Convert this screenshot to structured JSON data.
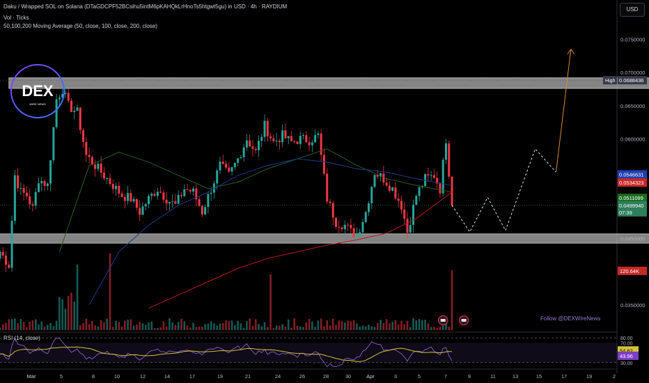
{
  "header": {
    "title": "Daku / Wrapped SOL on Solana (DTaGDCPF52BCsihu5intM6pKAHQkLrHnoTs5htgwt5gu) in USD · 4h · RAYDIUM",
    "volume": "Vol · Ticks",
    "ma": "50,100,200 Moving Average (50, close, 100, close, 200, close)"
  },
  "currency": "USD",
  "logo": {
    "text": "DEX",
    "subtext": "WIRE NEWS"
  },
  "follow": "Follow @DEXWireNews",
  "colors": {
    "up": "#26a69a",
    "down": "#f23645",
    "ma50": "#2a5d1f",
    "ma100": "#1f3a8a",
    "ma200": "#b71c1c",
    "rsi": "#9c6ade",
    "rsi_ma": "#d4c33a",
    "zone": "#b0b0b0",
    "projection": "#ffffff",
    "arrow": "#d98c2f"
  },
  "chart_data": {
    "type": "candlestick",
    "price_axis": {
      "ylim": [
        0.031,
        0.0805
      ],
      "ticks": [
        {
          "v": 0.075,
          "label": "0.0750000"
        },
        {
          "v": 0.07,
          "label": "0.0700000"
        },
        {
          "v": 0.065,
          "label": "0.0650000"
        },
        {
          "v": 0.06,
          "label": "0.0600000"
        },
        {
          "v": 0.045,
          "label": "0.0450000"
        },
        {
          "v": 0.04,
          "label": "0.0400000"
        },
        {
          "v": 0.035,
          "label": "0.0350000"
        }
      ]
    },
    "price_labels": [
      {
        "v": 0.0688436,
        "label": "0.0688436",
        "tag": "High",
        "bg": "#363a45",
        "fg": "#ffffff"
      },
      {
        "v": 0.0546631,
        "label": "0.0546631",
        "bg": "#1e3fb0",
        "fg": "#ffffff"
      },
      {
        "v": 0.0534323,
        "label": "0.0534323",
        "bg": "#c62828",
        "fg": "#ffffff"
      },
      {
        "v": 0.0511099,
        "label": "0.0511099",
        "bg": "#1b6e1f",
        "fg": "#ffffff"
      },
      {
        "v": 0.049994,
        "label": "0.0499940",
        "bg": "#2e7d5b",
        "fg": "#ffffff",
        "sub": "07:39"
      }
    ],
    "volume_label": {
      "label": "120.64K",
      "bg": "#c62828"
    },
    "x_ticks": [
      "Mar",
      "5",
      "8",
      "10",
      "12",
      "14",
      "17",
      "19",
      "21",
      "24",
      "26",
      "28",
      "30",
      "Apr",
      "3",
      "5",
      "7",
      "9",
      "11",
      "13",
      "15",
      "17",
      "19",
      "2"
    ],
    "zones": [
      {
        "from": 0.0676,
        "to": 0.0692,
        "x0": 3,
        "x1": 222
      },
      {
        "from": 0.0443,
        "to": 0.0457,
        "x0": -2,
        "x1": 222
      }
    ],
    "anchors": [
      [
        0,
        0.043
      ],
      [
        3,
        0.041
      ],
      [
        5,
        0.0545
      ],
      [
        7,
        0.052
      ],
      [
        9,
        0.0515
      ],
      [
        11,
        0.0495
      ],
      [
        13,
        0.054
      ],
      [
        16,
        0.053
      ],
      [
        19,
        0.066
      ],
      [
        21,
        0.0675
      ],
      [
        23,
        0.065
      ],
      [
        26,
        0.064
      ],
      [
        29,
        0.0575
      ],
      [
        32,
        0.056
      ],
      [
        35,
        0.0545
      ],
      [
        38,
        0.053
      ],
      [
        41,
        0.0515
      ],
      [
        44,
        0.051
      ],
      [
        47,
        0.049
      ],
      [
        50,
        0.051
      ],
      [
        53,
        0.0525
      ],
      [
        56,
        0.051
      ],
      [
        59,
        0.05
      ],
      [
        62,
        0.0525
      ],
      [
        65,
        0.052
      ],
      [
        68,
        0.049
      ],
      [
        71,
        0.0525
      ],
      [
        74,
        0.056
      ],
      [
        77,
        0.0545
      ],
      [
        80,
        0.057
      ],
      [
        83,
        0.06
      ],
      [
        86,
        0.058
      ],
      [
        89,
        0.062
      ],
      [
        92,
        0.0595
      ],
      [
        95,
        0.0605
      ],
      [
        98,
        0.0595
      ],
      [
        101,
        0.06
      ],
      [
        104,
        0.0598
      ],
      [
        107,
        0.0605
      ],
      [
        110,
        0.051
      ],
      [
        113,
        0.0475
      ],
      [
        116,
        0.047
      ],
      [
        118,
        0.046
      ],
      [
        120,
        0.0455
      ],
      [
        123,
        0.049
      ],
      [
        126,
        0.055
      ],
      [
        129,
        0.054
      ],
      [
        132,
        0.0525
      ],
      [
        135,
        0.05
      ],
      [
        137,
        0.046
      ],
      [
        140,
        0.0515
      ],
      [
        143,
        0.054
      ],
      [
        146,
        0.0545
      ],
      [
        148,
        0.0525
      ],
      [
        150,
        0.06
      ],
      [
        152,
        0.05
      ]
    ],
    "ma50": [
      [
        20,
        0.043
      ],
      [
        30,
        0.056
      ],
      [
        40,
        0.058
      ],
      [
        50,
        0.0565
      ],
      [
        60,
        0.0545
      ],
      [
        70,
        0.0525
      ],
      [
        80,
        0.0535
      ],
      [
        90,
        0.0555
      ],
      [
        100,
        0.057
      ],
      [
        110,
        0.0585
      ],
      [
        120,
        0.056
      ],
      [
        130,
        0.054
      ],
      [
        140,
        0.053
      ],
      [
        152,
        0.052
      ]
    ],
    "ma100": [
      [
        30,
        0.035
      ],
      [
        40,
        0.043
      ],
      [
        50,
        0.047
      ],
      [
        60,
        0.05
      ],
      [
        70,
        0.052
      ],
      [
        80,
        0.0545
      ],
      [
        90,
        0.056
      ],
      [
        100,
        0.057
      ],
      [
        110,
        0.0565
      ],
      [
        120,
        0.0555
      ],
      [
        130,
        0.055
      ],
      [
        140,
        0.054
      ],
      [
        152,
        0.053
      ]
    ],
    "ma200": [
      [
        50,
        0.0345
      ],
      [
        60,
        0.0365
      ],
      [
        70,
        0.0385
      ],
      [
        80,
        0.0405
      ],
      [
        90,
        0.042
      ],
      [
        100,
        0.043
      ],
      [
        110,
        0.044
      ],
      [
        120,
        0.0448
      ],
      [
        130,
        0.0458
      ],
      [
        140,
        0.048
      ],
      [
        152,
        0.052
      ]
    ],
    "projection": [
      [
        152,
        0.05
      ],
      [
        158,
        0.046
      ],
      [
        164,
        0.0512
      ],
      [
        170,
        0.0462
      ],
      [
        180,
        0.0585
      ],
      [
        187,
        0.055
      ]
    ],
    "arrow": {
      "from": [
        187,
        0.055
      ],
      "to": [
        192,
        0.0735
      ]
    },
    "events": [
      149,
      156
    ],
    "rsi": {
      "title": "RSI (14, close)",
      "ylim": [
        20,
        90
      ],
      "levels": [
        {
          "v": 80,
          "label": "80.00"
        },
        {
          "v": 70,
          "label": "70.00"
        },
        {
          "v": 60,
          "label": "60.00"
        },
        {
          "v": 40,
          "label": "40.00"
        },
        {
          "v": 30,
          "label": "30.00"
        }
      ],
      "current": {
        "v": 54.62,
        "label": "54.62",
        "bg": "#d4c33a",
        "fg": "#000000"
      },
      "ma_current": {
        "v": 43.96,
        "label": "43.96",
        "bg": "#7b3fc4",
        "fg": "#ffffff"
      }
    }
  }
}
